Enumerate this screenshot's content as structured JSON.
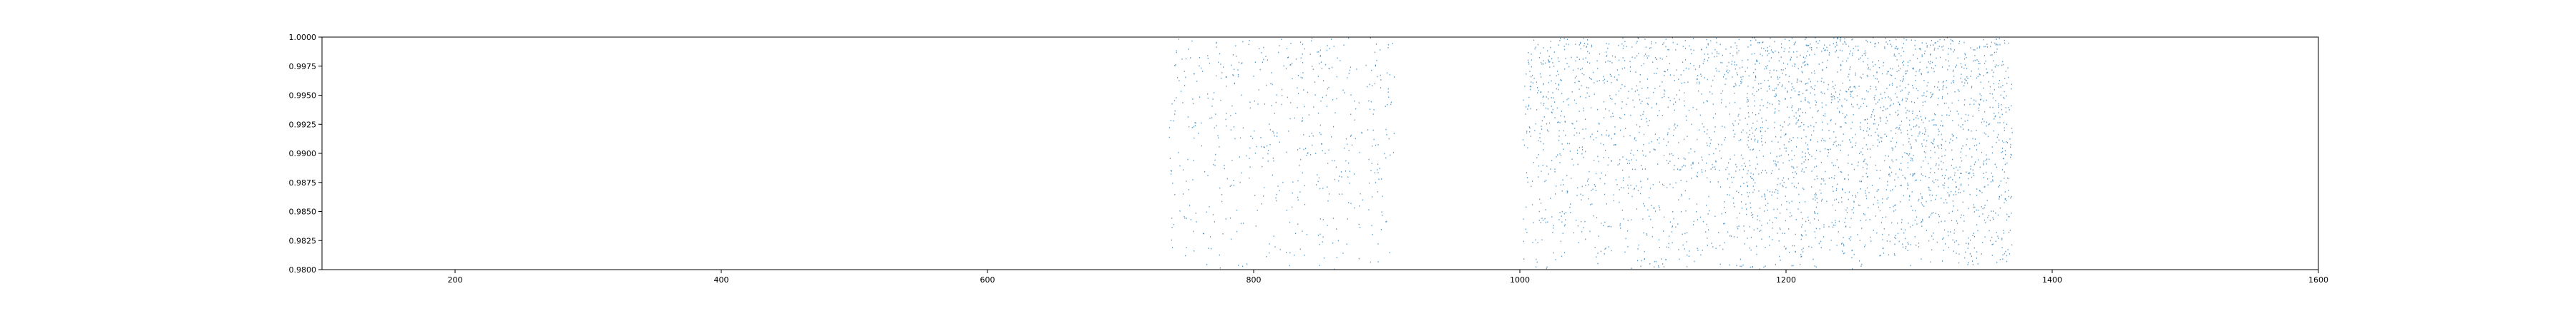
{
  "chart_data": {
    "type": "scatter",
    "title": "",
    "xlabel": "",
    "ylabel": "",
    "xlim": [
      100,
      1600
    ],
    "ylim": [
      0.98,
      1.0
    ],
    "xticks": [
      200,
      400,
      600,
      800,
      1000,
      1200,
      1400,
      1600
    ],
    "xtick_labels": [
      "200",
      "400",
      "600",
      "800",
      "1000",
      "1200",
      "1400",
      "1600"
    ],
    "yticks": [
      0.98,
      0.9825,
      0.985,
      0.9875,
      0.99,
      0.9925,
      0.995,
      0.9975,
      1.0
    ],
    "ytick_labels": [
      "0.9800",
      "0.9825",
      "0.9850",
      "0.9875",
      "0.9900",
      "0.9925",
      "0.9950",
      "0.9975",
      "1.0000"
    ],
    "grid": false,
    "point_color": "#1f77b4",
    "clusters": [
      {
        "x_range": [
          736,
          906
        ],
        "density": "sparse"
      },
      {
        "x_range": [
          1002,
          1170
        ],
        "density": "medium"
      },
      {
        "x_range": [
          1170,
          1300
        ],
        "density": "dense"
      },
      {
        "x_range": [
          1300,
          1370
        ],
        "density": "dense"
      }
    ]
  }
}
